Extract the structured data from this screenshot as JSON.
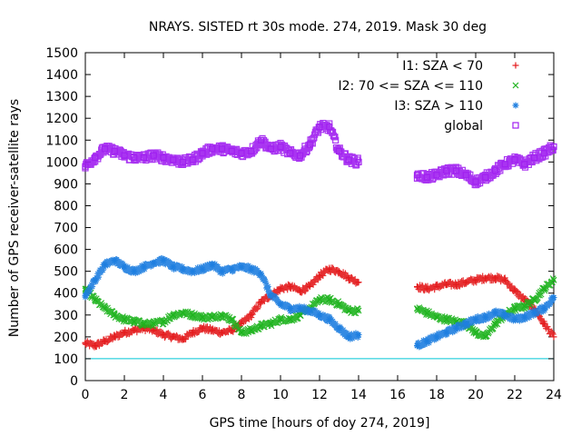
{
  "chart_data": {
    "type": "scatter",
    "title": "NRAYS. SISTED rt 30s mode. 274, 2019. Mask 30 deg",
    "xlabel": "GPS time [hours of doy 274, 2019]",
    "ylabel": "Number of GPS receiver-satellite rays",
    "xlim": [
      0,
      24
    ],
    "ylim": [
      0,
      1500
    ],
    "xticks": [
      0,
      2,
      4,
      6,
      8,
      10,
      12,
      14,
      16,
      18,
      20,
      22,
      24
    ],
    "yticks": [
      0,
      100,
      200,
      300,
      400,
      500,
      600,
      700,
      800,
      900,
      1000,
      1100,
      1200,
      1300,
      1400,
      1500
    ],
    "reference_line": {
      "y": 100,
      "color": "#00c8d8"
    },
    "data_gap_hours": [
      14.2,
      16.8
    ],
    "legend_position": "top-right",
    "series": [
      {
        "name": "I1: SZA < 70",
        "marker": "+",
        "color": "#e41a1c",
        "x": [
          0.0,
          0.5,
          1.0,
          1.5,
          2.0,
          2.5,
          3.0,
          3.5,
          4.0,
          4.5,
          5.0,
          5.5,
          6.0,
          6.5,
          7.0,
          7.5,
          8.0,
          8.5,
          9.0,
          9.5,
          10.0,
          10.5,
          11.0,
          11.5,
          12.0,
          12.5,
          13.0,
          13.5,
          14.0,
          17.0,
          17.5,
          18.0,
          18.5,
          19.0,
          19.5,
          20.0,
          20.5,
          21.0,
          21.5,
          22.0,
          22.5,
          23.0,
          23.5,
          24.0
        ],
        "y": [
          170,
          160,
          180,
          200,
          220,
          230,
          240,
          230,
          210,
          200,
          190,
          220,
          240,
          230,
          220,
          230,
          260,
          300,
          360,
          390,
          420,
          430,
          410,
          430,
          480,
          510,
          500,
          470,
          450,
          430,
          420,
          430,
          440,
          440,
          450,
          460,
          470,
          470,
          460,
          410,
          370,
          330,
          260,
          200
        ]
      },
      {
        "name": "I2: 70 <= SZA <= 110",
        "marker": "x",
        "color": "#1db31d",
        "x": [
          0.0,
          0.5,
          1.0,
          1.5,
          2.0,
          2.5,
          3.0,
          3.5,
          4.0,
          4.5,
          5.0,
          5.5,
          6.0,
          6.5,
          7.0,
          7.5,
          8.0,
          8.5,
          9.0,
          9.5,
          10.0,
          10.5,
          11.0,
          11.5,
          12.0,
          12.5,
          13.0,
          13.5,
          14.0,
          17.0,
          17.5,
          18.0,
          18.5,
          19.0,
          19.5,
          20.0,
          20.5,
          21.0,
          21.5,
          22.0,
          22.5,
          23.0,
          23.5,
          24.0
        ],
        "y": [
          420,
          370,
          330,
          300,
          280,
          270,
          260,
          260,
          270,
          300,
          310,
          300,
          290,
          290,
          300,
          280,
          220,
          230,
          250,
          260,
          280,
          280,
          300,
          330,
          370,
          370,
          350,
          320,
          320,
          330,
          310,
          290,
          280,
          270,
          260,
          220,
          200,
          260,
          300,
          330,
          340,
          370,
          420,
          460
        ]
      },
      {
        "name": "I3: SZA > 110",
        "marker": "*",
        "color": "#1f7fe0",
        "x": [
          0.0,
          0.5,
          1.0,
          1.5,
          2.0,
          2.5,
          3.0,
          3.5,
          4.0,
          4.5,
          5.0,
          5.5,
          6.0,
          6.5,
          7.0,
          7.5,
          8.0,
          8.5,
          9.0,
          9.5,
          10.0,
          10.5,
          11.0,
          11.5,
          12.0,
          12.5,
          13.0,
          13.5,
          14.0,
          17.0,
          17.5,
          18.0,
          18.5,
          19.0,
          19.5,
          20.0,
          20.5,
          21.0,
          21.5,
          22.0,
          22.5,
          23.0,
          23.5,
          24.0
        ],
        "y": [
          390,
          460,
          530,
          550,
          520,
          500,
          520,
          540,
          550,
          520,
          510,
          500,
          510,
          530,
          500,
          510,
          520,
          510,
          490,
          390,
          350,
          330,
          330,
          320,
          300,
          280,
          240,
          200,
          210,
          160,
          180,
          200,
          220,
          240,
          260,
          280,
          290,
          310,
          300,
          280,
          290,
          310,
          330,
          380
        ]
      },
      {
        "name": "global",
        "marker": "square",
        "color": "#a020f0",
        "x": [
          0.0,
          0.5,
          1.0,
          1.5,
          2.0,
          2.5,
          3.0,
          3.5,
          4.0,
          4.5,
          5.0,
          5.5,
          6.0,
          6.5,
          7.0,
          7.5,
          8.0,
          8.5,
          9.0,
          9.5,
          10.0,
          10.5,
          11.0,
          11.5,
          12.0,
          12.5,
          13.0,
          13.5,
          14.0,
          17.0,
          17.5,
          18.0,
          18.5,
          19.0,
          19.5,
          20.0,
          20.5,
          21.0,
          21.5,
          22.0,
          22.5,
          23.0,
          23.5,
          24.0
        ],
        "y": [
          980,
          1020,
          1060,
          1050,
          1030,
          1020,
          1020,
          1030,
          1020,
          1010,
          1000,
          1010,
          1040,
          1060,
          1060,
          1050,
          1040,
          1050,
          1100,
          1060,
          1070,
          1040,
          1030,
          1080,
          1160,
          1160,
          1050,
          1010,
          1000,
          940,
          930,
          940,
          960,
          960,
          940,
          910,
          930,
          960,
          990,
          1010,
          990,
          1020,
          1040,
          1070
        ]
      }
    ]
  }
}
